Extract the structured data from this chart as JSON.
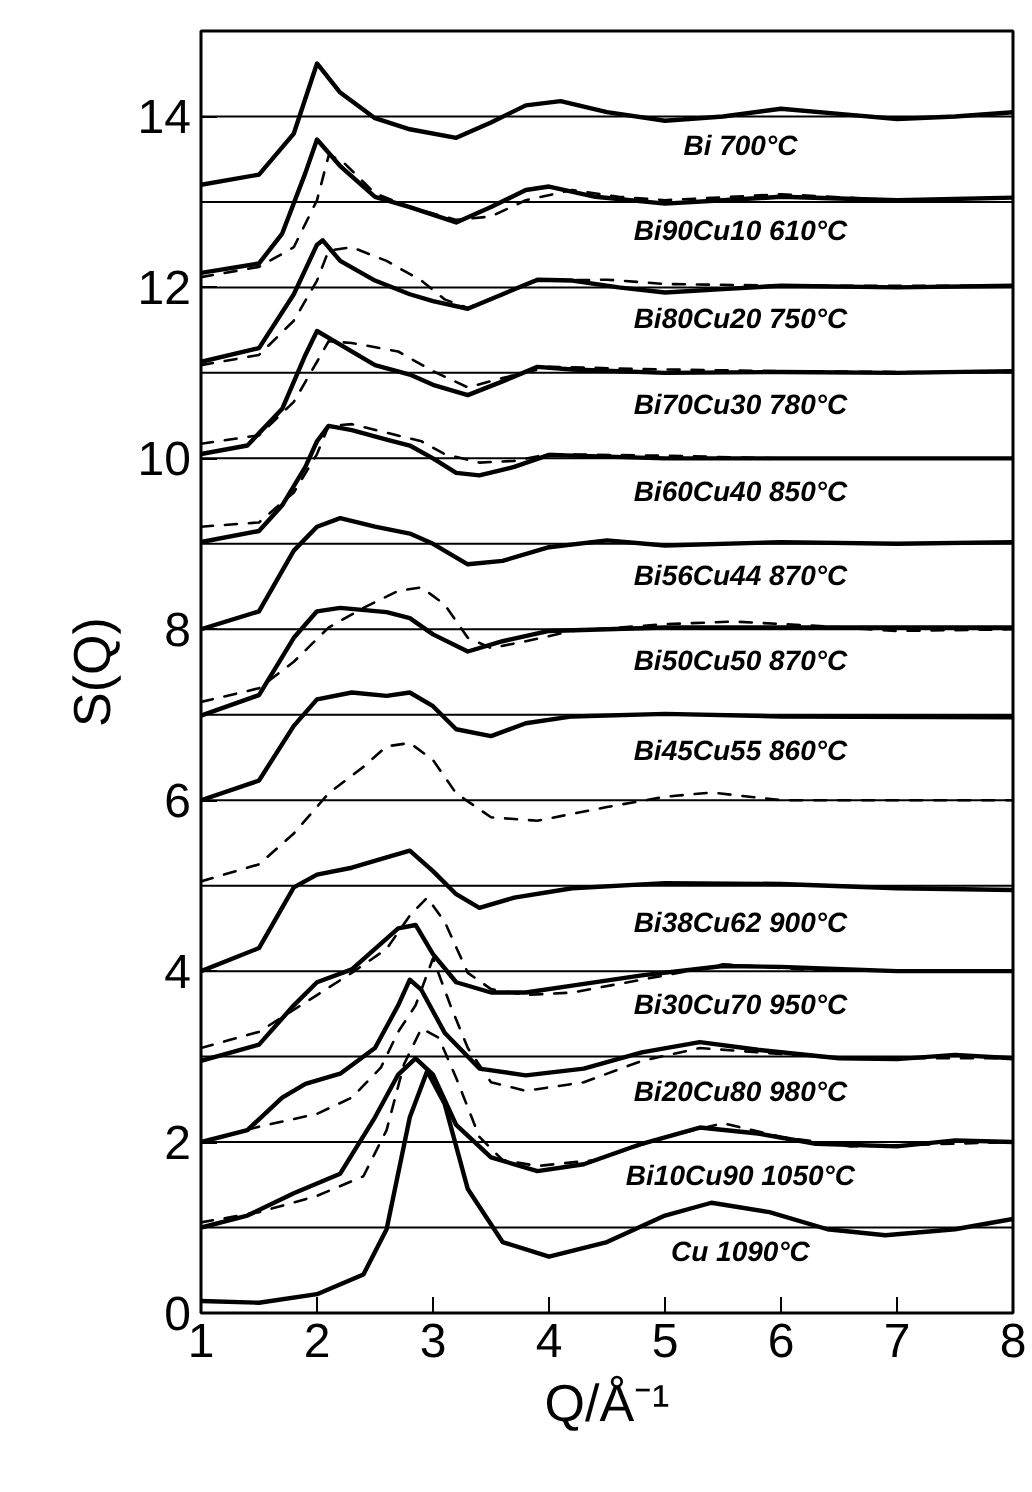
{
  "chart_data": {
    "type": "line",
    "xlabel": "Q/Å⁻¹",
    "ylabel": "S(Q)",
    "xlim": [
      1,
      8
    ],
    "ylim": [
      0,
      15
    ],
    "xticks": [
      1,
      2,
      3,
      4,
      5,
      6,
      7,
      8
    ],
    "yticks": [
      0,
      2,
      4,
      6,
      8,
      10,
      12,
      14
    ],
    "ref_lines": [
      {
        "axis": "y",
        "value": 1
      },
      {
        "axis": "y",
        "value": 2
      },
      {
        "axis": "y",
        "value": 3
      },
      {
        "axis": "y",
        "value": 4
      },
      {
        "axis": "y",
        "value": 5
      },
      {
        "axis": "y",
        "value": 6
      },
      {
        "axis": "y",
        "value": 7
      },
      {
        "axis": "y",
        "value": 8
      },
      {
        "axis": "y",
        "value": 9
      },
      {
        "axis": "y",
        "value": 10
      },
      {
        "axis": "y",
        "value": 11
      },
      {
        "axis": "y",
        "value": 12
      },
      {
        "axis": "y",
        "value": 13
      },
      {
        "axis": "y",
        "value": 14
      }
    ],
    "series": [
      {
        "name": "Bi 700°C",
        "color": "#000000",
        "line_style": "solid",
        "x": [
          1,
          1.5,
          1.8,
          2.0,
          2.2,
          2.5,
          2.8,
          3.2,
          3.5,
          3.8,
          4.1,
          4.5,
          5,
          5.5,
          6,
          6.5,
          7,
          7.5,
          8
        ],
        "values": [
          13.2,
          13.32,
          13.8,
          14.62,
          14.28,
          13.98,
          13.85,
          13.75,
          13.93,
          14.13,
          14.18,
          14.05,
          13.95,
          14.0,
          14.09,
          14.03,
          13.97,
          14.0,
          14.05
        ]
      },
      {
        "name": "Bi90Cu10 610°C",
        "color": "#000000",
        "line_style": "solid",
        "x": [
          1,
          1.5,
          1.7,
          1.9,
          2.0,
          2.2,
          2.5,
          2.8,
          3.2,
          3.5,
          3.8,
          4.0,
          4.4,
          5,
          5.5,
          6,
          7,
          8
        ],
        "values": [
          12.17,
          12.28,
          12.63,
          13.34,
          13.73,
          13.42,
          13.06,
          12.94,
          12.76,
          12.94,
          13.14,
          13.18,
          13.06,
          12.98,
          13.02,
          13.06,
          13.02,
          13.05
        ]
      },
      {
        "color": "#000000",
        "line_style": "dashed",
        "x": [
          1,
          1.5,
          1.8,
          2.0,
          2.1,
          2.2,
          2.5,
          2.8,
          3.2,
          3.5,
          3.8,
          4.2,
          4.6,
          5,
          6,
          7,
          8
        ],
        "values": [
          12.12,
          12.24,
          12.47,
          13.02,
          13.54,
          13.5,
          13.1,
          12.94,
          12.79,
          12.83,
          13.02,
          13.14,
          13.06,
          13.02,
          13.09,
          13.02,
          13.05
        ]
      },
      {
        "name": "Bi80Cu20 750°C",
        "color": "#000000",
        "line_style": "solid",
        "x": [
          1,
          1.5,
          1.8,
          2.0,
          2.05,
          2.2,
          2.5,
          2.8,
          3.0,
          3.3,
          3.6,
          3.9,
          4.2,
          4.6,
          5,
          5.5,
          6,
          7,
          8
        ],
        "values": [
          11.13,
          11.29,
          11.92,
          12.5,
          12.55,
          12.31,
          12.08,
          11.92,
          11.84,
          11.75,
          11.92,
          12.09,
          12.08,
          12.0,
          11.94,
          11.98,
          12.02,
          12.0,
          12.02
        ]
      },
      {
        "color": "#000000",
        "line_style": "dashed",
        "x": [
          1,
          1.5,
          1.8,
          2.0,
          2.1,
          2.3,
          2.6,
          2.9,
          3.1,
          3.3,
          3.6,
          3.9,
          4.5,
          5,
          6,
          7,
          8
        ],
        "values": [
          11.09,
          11.21,
          11.61,
          12.08,
          12.43,
          12.47,
          12.31,
          12.08,
          11.86,
          11.76,
          11.92,
          12.08,
          12.09,
          12.04,
          12.02,
          12.02,
          12.02
        ]
      },
      {
        "name": "Bi70Cu30 780°C",
        "color": "#000000",
        "line_style": "solid",
        "x": [
          1,
          1.4,
          1.7,
          1.9,
          2.0,
          2.2,
          2.5,
          2.8,
          3.0,
          3.3,
          3.6,
          3.9,
          4.2,
          5,
          6,
          7,
          8
        ],
        "values": [
          10.05,
          10.15,
          10.58,
          11.21,
          11.49,
          11.33,
          11.09,
          10.98,
          10.86,
          10.74,
          10.9,
          11.07,
          11.04,
          11.0,
          11.01,
          11.0,
          11.02
        ]
      },
      {
        "color": "#000000",
        "line_style": "dashed",
        "x": [
          1,
          1.5,
          1.8,
          2.0,
          2.1,
          2.3,
          2.7,
          3.0,
          3.3,
          3.6,
          4.0,
          5,
          6,
          7,
          8
        ],
        "values": [
          10.17,
          10.27,
          10.66,
          11.13,
          11.37,
          11.35,
          11.25,
          11.02,
          10.83,
          10.94,
          11.07,
          11.04,
          11.02,
          11.01,
          11.01
        ]
      },
      {
        "name": "Bi60Cu40 850°C",
        "color": "#000000",
        "line_style": "solid",
        "x": [
          1,
          1.5,
          1.7,
          1.9,
          2.0,
          2.1,
          2.3,
          2.6,
          2.8,
          3.0,
          3.2,
          3.4,
          3.7,
          4.0,
          4.5,
          5,
          6,
          7,
          8
        ],
        "values": [
          9.02,
          9.15,
          9.45,
          9.9,
          10.2,
          10.38,
          10.33,
          10.22,
          10.15,
          10.0,
          9.83,
          9.8,
          9.9,
          10.04,
          10.02,
          10.0,
          10.0,
          10.0,
          10.0
        ]
      },
      {
        "color": "#000000",
        "line_style": "dashed",
        "x": [
          1,
          1.5,
          1.8,
          2.0,
          2.1,
          2.3,
          2.6,
          2.9,
          3.1,
          3.4,
          3.7,
          4.0,
          5,
          6,
          8
        ],
        "values": [
          9.2,
          9.25,
          9.6,
          10.05,
          10.38,
          10.4,
          10.3,
          10.2,
          10.05,
          9.95,
          9.97,
          10.05,
          10.03,
          10.0,
          10.0
        ]
      },
      {
        "name": "Bi56Cu44 870°C",
        "color": "#000000",
        "line_style": "solid",
        "x": [
          1,
          1.5,
          1.8,
          2.0,
          2.2,
          2.5,
          2.8,
          3.0,
          3.3,
          3.6,
          4.0,
          4.5,
          5,
          6,
          7,
          8
        ],
        "values": [
          8.0,
          8.21,
          8.92,
          9.2,
          9.3,
          9.2,
          9.12,
          9.0,
          8.76,
          8.8,
          8.96,
          9.04,
          8.98,
          9.02,
          9.0,
          9.02
        ]
      },
      {
        "name": "Bi50Cu50 870°C",
        "color": "#000000",
        "line_style": "solid",
        "x": [
          1,
          1.5,
          1.8,
          2.0,
          2.2,
          2.6,
          2.8,
          3.0,
          3.3,
          3.6,
          4.0,
          5,
          6,
          8
        ],
        "values": [
          6.99,
          7.23,
          7.9,
          8.21,
          8.25,
          8.2,
          8.13,
          7.94,
          7.74,
          7.86,
          7.98,
          8.02,
          8.02,
          8.02
        ]
      },
      {
        "color": "#000000",
        "line_style": "dashed",
        "x": [
          1,
          1.5,
          1.8,
          2.1,
          2.4,
          2.7,
          2.9,
          3.1,
          3.3,
          3.5,
          3.8,
          4.2,
          5,
          5.6,
          6.3,
          7,
          8
        ],
        "values": [
          7.15,
          7.31,
          7.62,
          8.02,
          8.25,
          8.45,
          8.49,
          8.29,
          7.9,
          7.78,
          7.86,
          7.98,
          8.06,
          8.09,
          8.04,
          7.98,
          8.0
        ]
      },
      {
        "name": "Bi45Cu55 860°C",
        "color": "#000000",
        "line_style": "solid",
        "x": [
          1,
          1.5,
          1.8,
          2.0,
          2.3,
          2.6,
          2.8,
          3.0,
          3.2,
          3.5,
          3.8,
          4.2,
          5,
          6,
          8
        ],
        "values": [
          6.0,
          6.23,
          6.87,
          7.18,
          7.26,
          7.22,
          7.26,
          7.1,
          6.83,
          6.75,
          6.9,
          6.98,
          7.01,
          6.98,
          6.97
        ]
      },
      {
        "color": "#000000",
        "line_style": "dashed",
        "x": [
          1,
          1.5,
          1.8,
          2.1,
          2.4,
          2.6,
          2.8,
          3.0,
          3.2,
          3.5,
          3.9,
          4.5,
          5,
          5.4,
          6,
          7,
          8
        ],
        "values": [
          5.05,
          5.25,
          5.61,
          6.08,
          6.39,
          6.63,
          6.67,
          6.47,
          6.08,
          5.8,
          5.76,
          5.92,
          6.04,
          6.09,
          6.0,
          6.0,
          6.0
        ]
      },
      {
        "name": "Bi38Cu62 900°C",
        "color": "#000000",
        "line_style": "solid",
        "x": [
          1,
          1.5,
          1.8,
          2.0,
          2.3,
          2.6,
          2.8,
          3.0,
          3.2,
          3.4,
          3.7,
          4.2,
          5,
          6,
          7,
          8
        ],
        "values": [
          4.0,
          4.27,
          4.98,
          5.13,
          5.21,
          5.33,
          5.41,
          5.17,
          4.9,
          4.74,
          4.86,
          4.97,
          5.03,
          5.02,
          4.97,
          4.95
        ]
      },
      {
        "name": "Bi30Cu70 950°C",
        "color": "#000000",
        "line_style": "solid",
        "x": [
          1,
          1.5,
          1.8,
          2.0,
          2.3,
          2.5,
          2.7,
          2.85,
          3.0,
          3.2,
          3.5,
          3.8,
          4.2,
          4.8,
          5.5,
          6,
          7,
          8
        ],
        "values": [
          2.95,
          3.14,
          3.6,
          3.87,
          4.02,
          4.26,
          4.5,
          4.54,
          4.2,
          3.87,
          3.75,
          3.75,
          3.83,
          3.95,
          4.06,
          4.05,
          4.0,
          4.0
        ]
      },
      {
        "color": "#000000",
        "line_style": "dashed",
        "x": [
          1,
          1.5,
          2.0,
          2.3,
          2.6,
          2.8,
          2.95,
          3.1,
          3.3,
          3.5,
          3.8,
          4.2,
          4.8,
          5.5,
          6.2,
          7,
          8
        ],
        "values": [
          3.1,
          3.29,
          3.72,
          3.98,
          4.26,
          4.65,
          4.86,
          4.58,
          3.98,
          3.79,
          3.72,
          3.75,
          3.9,
          4.08,
          4.02,
          4.0,
          4.0
        ]
      },
      {
        "name": "Bi20Cu80 980°C",
        "color": "#000000",
        "line_style": "solid",
        "x": [
          1,
          1.4,
          1.7,
          1.9,
          2.2,
          2.5,
          2.7,
          2.8,
          2.9,
          3.1,
          3.4,
          3.8,
          4.3,
          4.8,
          5.3,
          5.8,
          6.5,
          7,
          7.5,
          8
        ],
        "values": [
          2.0,
          2.14,
          2.52,
          2.68,
          2.8,
          3.1,
          3.6,
          3.9,
          3.78,
          3.28,
          2.86,
          2.78,
          2.86,
          3.05,
          3.17,
          3.08,
          2.98,
          2.97,
          3.02,
          2.98
        ]
      },
      {
        "color": "#000000",
        "line_style": "dashed",
        "x": [
          1,
          1.5,
          2.0,
          2.3,
          2.55,
          2.7,
          2.85,
          3.0,
          3.15,
          3.3,
          3.5,
          3.8,
          4.3,
          4.8,
          5.3,
          5.8,
          6.5,
          8
        ],
        "values": [
          2.0,
          2.18,
          2.33,
          2.52,
          2.87,
          3.29,
          3.6,
          4.15,
          3.6,
          3.1,
          2.7,
          2.6,
          2.7,
          2.95,
          3.1,
          3.05,
          2.98,
          2.98
        ]
      },
      {
        "name": "Bi10Cu90 1050°C",
        "color": "#000000",
        "line_style": "solid",
        "x": [
          1,
          1.4,
          1.8,
          2.2,
          2.5,
          2.7,
          2.85,
          3.0,
          3.2,
          3.5,
          3.9,
          4.3,
          4.8,
          5.3,
          5.8,
          6.3,
          7,
          7.5,
          8
        ],
        "values": [
          1.0,
          1.14,
          1.4,
          1.63,
          2.29,
          2.79,
          2.98,
          2.79,
          2.2,
          1.82,
          1.66,
          1.74,
          1.98,
          2.17,
          2.1,
          1.98,
          1.95,
          2.02,
          2.0
        ]
      },
      {
        "color": "#000000",
        "line_style": "dashed",
        "x": [
          1,
          1.5,
          2.0,
          2.4,
          2.6,
          2.75,
          2.9,
          3.05,
          3.2,
          3.4,
          3.6,
          3.9,
          4.4,
          5,
          5.5,
          6.0,
          6.6,
          7.2,
          8
        ],
        "values": [
          1.06,
          1.18,
          1.37,
          1.6,
          2.14,
          2.91,
          3.33,
          3.22,
          2.75,
          2.06,
          1.79,
          1.72,
          1.79,
          2.06,
          2.22,
          2.06,
          1.95,
          1.97,
          2.0
        ]
      },
      {
        "name": "Cu 1090°C",
        "color": "#000000",
        "line_style": "solid",
        "x": [
          1,
          1.5,
          2.0,
          2.4,
          2.6,
          2.8,
          2.95,
          3.1,
          3.3,
          3.6,
          4.0,
          4.5,
          5.0,
          5.4,
          5.9,
          6.4,
          6.9,
          7.5,
          8
        ],
        "values": [
          0.14,
          0.12,
          0.22,
          0.45,
          0.98,
          2.29,
          2.83,
          2.45,
          1.45,
          0.83,
          0.66,
          0.83,
          1.14,
          1.29,
          1.18,
          0.98,
          0.91,
          0.98,
          1.1
        ]
      }
    ]
  }
}
